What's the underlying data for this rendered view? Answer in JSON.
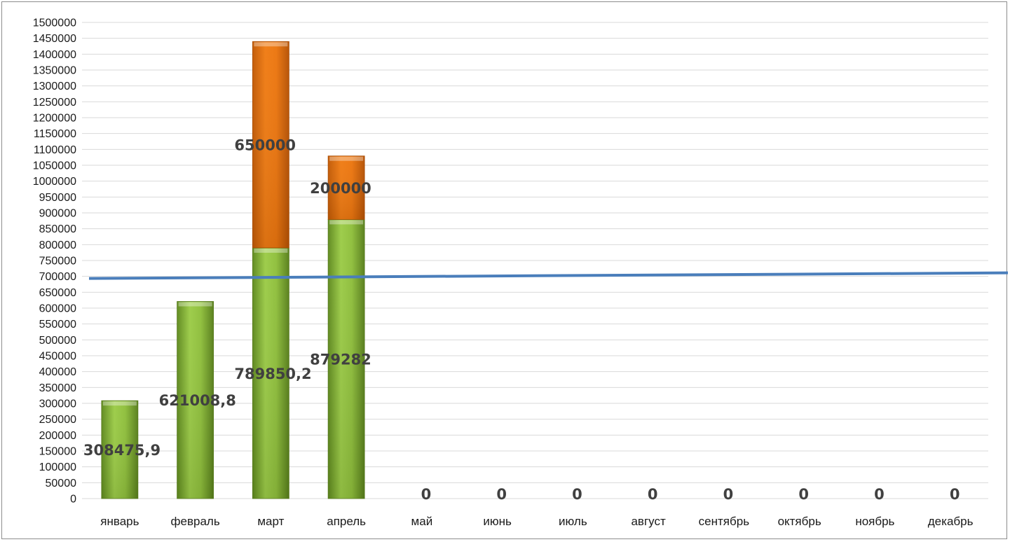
{
  "chart_data": {
    "type": "bar",
    "stacked": true,
    "title": "",
    "xlabel": "",
    "ylabel": "",
    "ylim": [
      0,
      1500000
    ],
    "ytick_step": 50000,
    "grid": true,
    "legend": "none",
    "categories": [
      "январь",
      "февраль",
      "март",
      "апрель",
      "май",
      "июнь",
      "июль",
      "август",
      "сентябрь",
      "октябрь",
      "ноябрь",
      "декабрь"
    ],
    "series": [
      {
        "color": "#8dbb3a",
        "values": [
          308475.9,
          621008.8,
          789850.2,
          879282,
          0,
          0,
          0,
          0,
          0,
          0,
          0,
          0
        ],
        "labels": [
          "308475,9",
          "621008,8",
          "789850,2",
          "879282",
          "0",
          "0",
          "0",
          "0",
          "0",
          "0",
          "0",
          "0"
        ]
      },
      {
        "color": "#e8720f",
        "values": [
          0,
          0,
          650000,
          200000,
          0,
          0,
          0,
          0,
          0,
          0,
          0,
          0
        ],
        "labels": [
          "",
          "",
          "650000",
          "200000",
          "",
          "",
          "",
          "",
          "",
          "",
          "",
          ""
        ]
      }
    ],
    "reference_line": {
      "value": 700000,
      "color": "#4a7ebb"
    }
  }
}
